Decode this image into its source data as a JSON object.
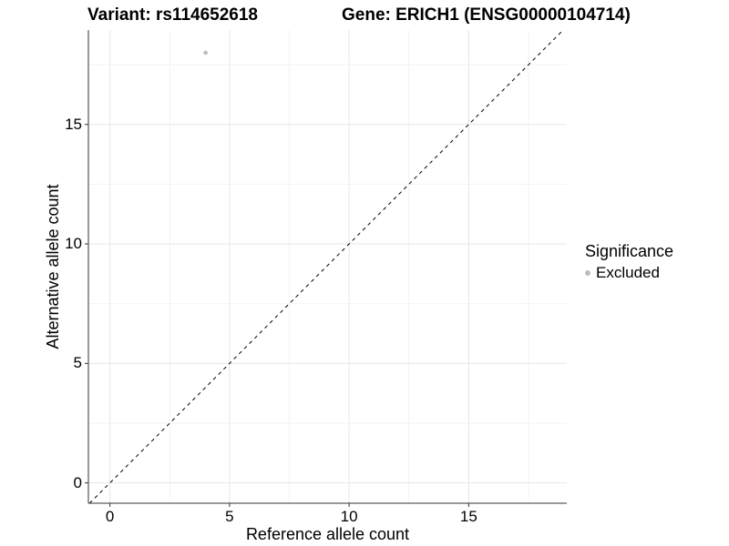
{
  "header": {
    "title_variant": "Variant: rs114652618",
    "title_gene": "Gene: ERICH1 (ENSG00000104714)"
  },
  "legend": {
    "title": "Significance",
    "items": [
      {
        "label": "Excluded",
        "color": "#bdbdbd"
      }
    ]
  },
  "chart_data": {
    "type": "scatter",
    "title": "Variant: rs114652618   Gene: ERICH1 (ENSG00000104714)",
    "xlabel": "Reference allele count",
    "ylabel": "Alternative allele count",
    "points": [
      {
        "x": 4,
        "y": 18,
        "series": "Excluded"
      }
    ],
    "series": [
      {
        "name": "Excluded",
        "color": "#bdbdbd"
      }
    ],
    "xlim": [
      -0.9,
      19.1
    ],
    "ylim": [
      -0.85,
      18.95
    ],
    "xticks": [
      0,
      5,
      10,
      15
    ],
    "yticks": [
      0,
      5,
      10,
      15
    ],
    "xticks_minor": [
      2.5,
      7.5,
      12.5,
      17.5
    ],
    "yticks_minor": [
      2.5,
      7.5,
      12.5,
      17.5
    ],
    "reference_line": {
      "type": "identity",
      "linetype": "dashed",
      "color": "#000000"
    },
    "grid": true,
    "legend_position": "right",
    "colors": {
      "grid_major": "#e7e7e7",
      "grid_minor": "#f3f3f3",
      "axis_line": "#333333",
      "point": "#bdbdbd"
    }
  }
}
